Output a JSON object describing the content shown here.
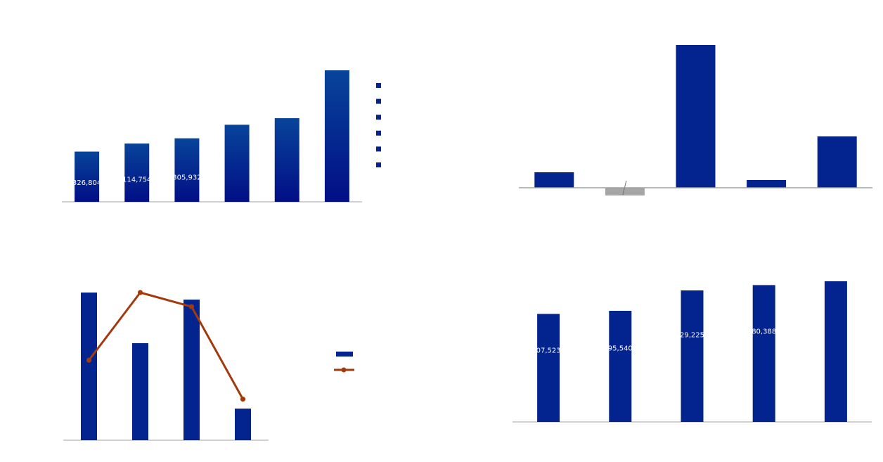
{
  "colors": {
    "bar": "#03248f",
    "bar_top": "#07449a",
    "negative_bar": "#a6a6a6",
    "line": "#a33a0c",
    "axis": "#a0a0a0"
  },
  "chart_data": [
    {
      "type": "bar",
      "categories": [
        "",
        "",
        "",
        "",
        "",
        ""
      ],
      "values": [
        382,
        443,
        483,
        586,
        636,
        1000
      ],
      "data_labels": [
        "326,804",
        "114,754",
        "305,932",
        "",
        "",
        ""
      ],
      "legend": {
        "placement": "right",
        "entries": [
          "",
          "",
          "",
          "",
          "",
          ""
        ]
      },
      "ylim": [
        0,
        1000
      ],
      "grid": false
    },
    {
      "type": "bar",
      "categories": [
        "",
        "",
        "",
        "",
        ""
      ],
      "values": [
        22,
        -11,
        203,
        11,
        73
      ],
      "data_labels": [
        "",
        "",
        "",
        "",
        ""
      ],
      "ylim": [
        -15,
        203
      ],
      "grid": false
    },
    {
      "type": "bar",
      "categories": [
        "",
        "",
        "",
        ""
      ],
      "series": [
        {
          "type": "bar",
          "values": [
            1000,
            657,
            952,
            214
          ]
        },
        {
          "type": "line",
          "values": [
            542,
            1000,
            904,
            278
          ]
        }
      ],
      "legend": {
        "placement": "right",
        "entries": [
          "",
          ""
        ]
      },
      "ylim": [
        0,
        1000
      ],
      "grid": false
    },
    {
      "type": "bar",
      "categories": [
        "",
        "",
        "",
        "",
        ""
      ],
      "values": [
        768,
        790,
        935,
        973,
        1000
      ],
      "data_labels": [
        "07,523",
        "95,540",
        "29,225",
        "80,388",
        ""
      ],
      "ylim": [
        0,
        1000
      ],
      "grid": false
    }
  ]
}
